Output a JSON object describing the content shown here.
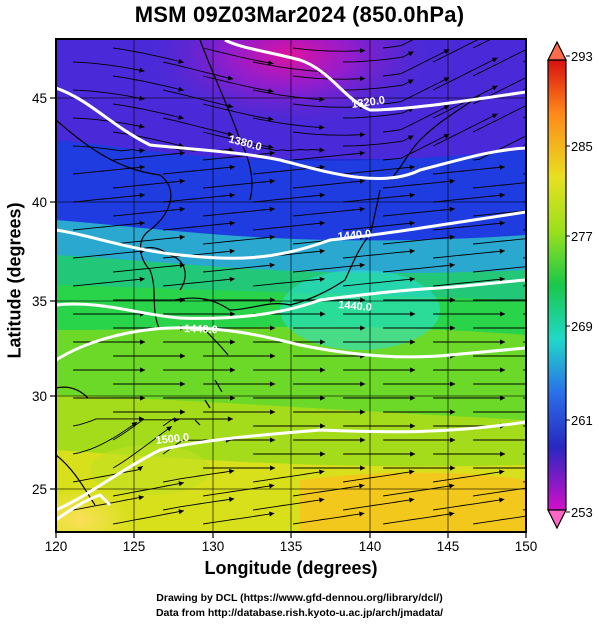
{
  "title": "MSM 09Z03Mar2024 (850.0hPa)",
  "axes": {
    "xlabel": "Longitude (degrees)",
    "ylabel": "Latitude  (degrees)",
    "x_ticks": [
      "120",
      "125",
      "130",
      "135",
      "140",
      "145",
      "150"
    ],
    "y_ticks": [
      "45",
      "40",
      "35",
      "30",
      "25"
    ]
  },
  "colorbar": {
    "labels": [
      "293",
      "285",
      "277",
      "269",
      "261",
      "253"
    ],
    "min": 253,
    "max": 293
  },
  "contours": [
    {
      "value": 1320,
      "label": "1320.0"
    },
    {
      "value": 1380,
      "label": "1380.0"
    },
    {
      "value": 1440,
      "label": "1440.0"
    },
    {
      "value": 1440,
      "label": "1440.0"
    },
    {
      "value": 1440,
      "label": "1440.0"
    },
    {
      "value": 1500,
      "label": "1500.0"
    }
  ],
  "credits": {
    "line1": "Drawing by DCL (https://www.gfd-dennou.org/library/dcl/)",
    "line2": "Data from http://database.rish.kyoto-u.ac.jp/arch/jmadata/"
  },
  "map_data": {
    "type": "streamlines_over_temperature",
    "lon_range": [
      120,
      150
    ],
    "lat_range": [
      22.5,
      47.5
    ],
    "colormap": "temperature_K",
    "grid": true
  }
}
